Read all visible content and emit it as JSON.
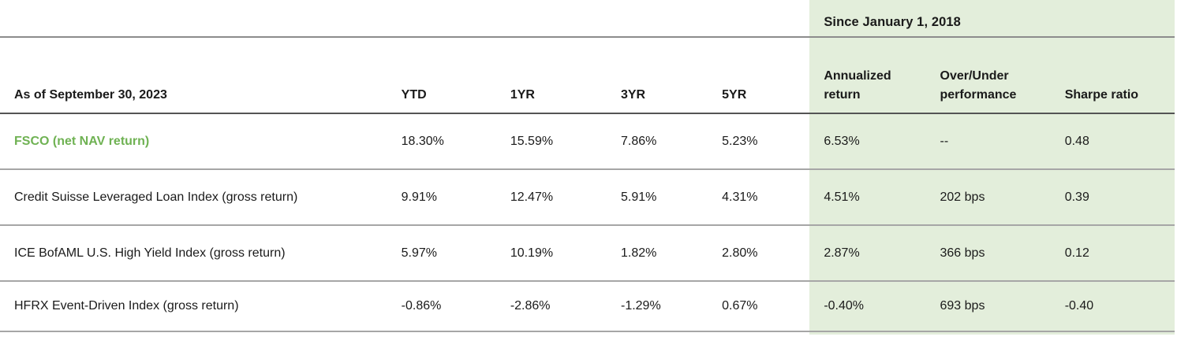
{
  "table": {
    "group_header": "Since January 1, 2018",
    "columns": [
      "As of September 30, 2023",
      "YTD",
      "1YR",
      "3YR",
      "5YR",
      "Annualized return",
      "Over/Under performance",
      "Sharpe ratio"
    ],
    "rows": [
      {
        "label": "FSCO (net NAV return)",
        "values": [
          "18.30%",
          "15.59%",
          "7.86%",
          "5.23%",
          "6.53%",
          "--",
          "0.48"
        ]
      },
      {
        "label": "Credit Suisse Leveraged Loan Index (gross return)",
        "values": [
          "9.91%",
          "12.47%",
          "5.91%",
          "4.31%",
          "4.51%",
          "202 bps",
          "0.39"
        ]
      },
      {
        "label": "ICE BofAML U.S. High Yield Index (gross return)",
        "values": [
          "5.97%",
          "10.19%",
          "1.82%",
          "2.80%",
          "2.87%",
          "366 bps",
          "0.12"
        ]
      },
      {
        "label": "HFRX Event-Driven Index (gross return)",
        "values": [
          "-0.86%",
          "-2.86%",
          "-1.29%",
          "0.67%",
          "-0.40%",
          "693 bps",
          "-0.40"
        ]
      }
    ],
    "colors": {
      "accent_green_text": "#6fb253",
      "band_green_background": "#e3eedb",
      "header_rule": "#545454",
      "row_rule": "#a6a6a6",
      "top_rule": "#8c8c8c"
    }
  },
  "chart_data": {
    "type": "table",
    "title": "Performance comparison as of September 30, 2023",
    "group_header_span": "Since January 1, 2018 (Annualized return, Over/Under performance, Sharpe ratio)",
    "columns": [
      "YTD",
      "1YR",
      "3YR",
      "5YR",
      "Annualized return",
      "Over/Under performance",
      "Sharpe ratio"
    ],
    "series": [
      {
        "name": "FSCO (net NAV return)",
        "values": [
          "18.30%",
          "15.59%",
          "7.86%",
          "5.23%",
          "6.53%",
          "--",
          "0.48"
        ]
      },
      {
        "name": "Credit Suisse Leveraged Loan Index (gross return)",
        "values": [
          "9.91%",
          "12.47%",
          "5.91%",
          "4.31%",
          "4.51%",
          "202 bps",
          "0.39"
        ]
      },
      {
        "name": "ICE BofAML U.S. High Yield Index (gross return)",
        "values": [
          "5.97%",
          "10.19%",
          "1.82%",
          "2.80%",
          "2.87%",
          "366 bps",
          "0.12"
        ]
      },
      {
        "name": "HFRX Event-Driven Index (gross return)",
        "values": [
          "-0.86%",
          "-2.86%",
          "-1.29%",
          "0.67%",
          "-0.40%",
          "693 bps",
          "-0.40"
        ]
      }
    ]
  }
}
